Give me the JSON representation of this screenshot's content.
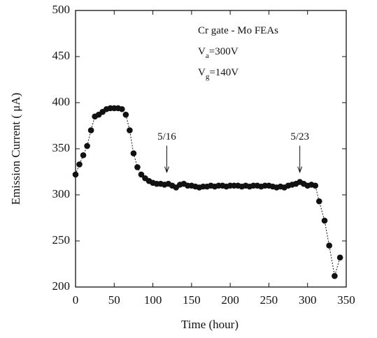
{
  "chart_data": {
    "type": "scatter",
    "x_label": "Time (hour)",
    "y_label": "Emission Current ( μA)",
    "xlim": [
      0,
      350
    ],
    "xticks": [
      0,
      50,
      100,
      150,
      200,
      250,
      300,
      350
    ],
    "ylim": [
      200,
      500
    ],
    "yticks": [
      200,
      250,
      300,
      350,
      400,
      450,
      500
    ],
    "color": "#111111",
    "x": [
      0,
      5,
      10,
      15,
      20,
      25,
      30,
      35,
      40,
      45,
      50,
      55,
      60,
      65,
      70,
      75,
      80,
      85,
      90,
      95,
      100,
      105,
      110,
      115,
      120,
      125,
      130,
      135,
      140,
      145,
      150,
      155,
      160,
      165,
      170,
      175,
      180,
      185,
      190,
      195,
      200,
      205,
      210,
      215,
      220,
      225,
      230,
      235,
      240,
      245,
      250,
      255,
      260,
      265,
      270,
      275,
      280,
      285,
      290,
      295,
      300,
      305,
      310,
      315,
      322,
      328,
      335,
      342
    ],
    "values": [
      322,
      333,
      343,
      353,
      370,
      385,
      387,
      390,
      393,
      394,
      394,
      394,
      393,
      387,
      370,
      345,
      330,
      322,
      318,
      315,
      313,
      312,
      312,
      311,
      312,
      310,
      308,
      311,
      312,
      310,
      310,
      309,
      308,
      309,
      309,
      310,
      309,
      310,
      310,
      309,
      310,
      310,
      310,
      309,
      310,
      309,
      310,
      310,
      309,
      310,
      310,
      309,
      308,
      309,
      308,
      310,
      311,
      312,
      314,
      312,
      310,
      311,
      310,
      293,
      272,
      245,
      212,
      232
    ],
    "legend_text": [
      {
        "text": "Cr gate - Mo FEAs"
      },
      {
        "text": "V",
        "sub": "a",
        "rest": "=300V"
      },
      {
        "text": "V",
        "sub": "g",
        "rest": "=140V"
      }
    ],
    "annotations": [
      {
        "label": "5/16",
        "x": 118,
        "y": 320
      },
      {
        "label": "5/23",
        "x": 290,
        "y": 320
      }
    ]
  }
}
